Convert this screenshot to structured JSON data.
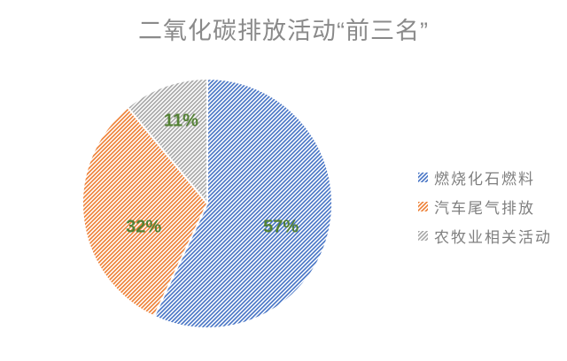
{
  "chart_data": {
    "type": "pie",
    "title": "二氧化碳排放活动“前三名”",
    "slices": [
      {
        "label": "燃烧化石燃料",
        "value": 57,
        "data_label": "57%",
        "color": "#4472C4"
      },
      {
        "label": "汽车尾气排放",
        "value": 32,
        "data_label": "32%",
        "color": "#ED7D31"
      },
      {
        "label": "农牧业相关活动",
        "value": 11,
        "data_label": "11%",
        "color": "#A5A5A5"
      }
    ],
    "start_angle_deg": 0,
    "direction": "clockwise",
    "fill_pattern": "light-upward-diagonal-hatch",
    "data_label_color": "#548235",
    "title_color": "#8A8A8A",
    "legend_text_color": "#7F7F7F",
    "legend_position": "right",
    "background": "#FFFFFF"
  }
}
